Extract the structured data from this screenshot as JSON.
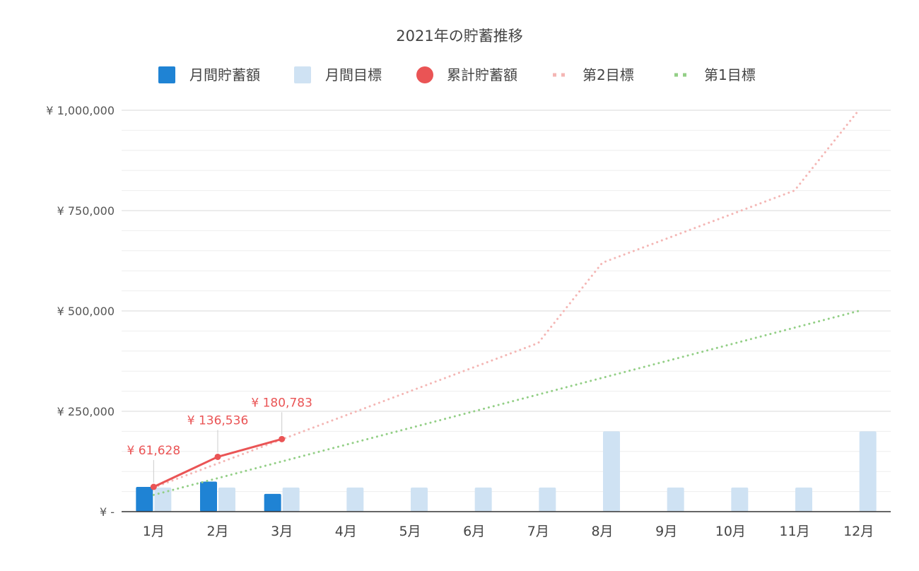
{
  "chart_data": {
    "type": "bar",
    "title": "2021年の貯蓄推移",
    "categories": [
      "1月",
      "2月",
      "3月",
      "4月",
      "5月",
      "6月",
      "7月",
      "8月",
      "9月",
      "10月",
      "11月",
      "12月"
    ],
    "ylim": [
      0,
      1000000
    ],
    "y_ticks": [
      {
        "value": 0,
        "label": "¥ -"
      },
      {
        "value": 250000,
        "label": "¥ 250,000"
      },
      {
        "value": 500000,
        "label": "¥ 500,000"
      },
      {
        "value": 750000,
        "label": "¥ 750,000"
      },
      {
        "value": 1000000,
        "label": "¥ 1,000,000"
      }
    ],
    "grid": true,
    "legend_position": "top",
    "series": [
      {
        "name": "月間貯蓄額",
        "kind": "bar",
        "color": "#1f83d4",
        "values": [
          61628,
          74908,
          44247,
          null,
          null,
          null,
          null,
          null,
          null,
          null,
          null,
          null
        ]
      },
      {
        "name": "月間目標",
        "kind": "bar",
        "color": "#cfe2f3",
        "values": [
          60000,
          60000,
          60000,
          60000,
          60000,
          60000,
          60000,
          200000,
          60000,
          60000,
          60000,
          200000
        ]
      },
      {
        "name": "累計貯蓄額",
        "kind": "line",
        "style": "solid",
        "color": "#ea5455",
        "values": [
          61628,
          136536,
          180783,
          null,
          null,
          null,
          null,
          null,
          null,
          null,
          null,
          null
        ],
        "data_labels": [
          "¥ 61,628",
          "¥ 136,536",
          "¥ 180,783"
        ]
      },
      {
        "name": "第2目標",
        "kind": "line",
        "style": "dotted",
        "color": "#f4b6b4",
        "values": [
          60000,
          120000,
          180000,
          240000,
          300000,
          360000,
          420000,
          620000,
          680000,
          740000,
          800000,
          1000000
        ]
      },
      {
        "name": "第1目標",
        "kind": "line",
        "style": "dotted",
        "color": "#93cf86",
        "values": [
          41667,
          83333,
          125000,
          166667,
          208333,
          250000,
          291667,
          333333,
          375000,
          416667,
          458333,
          500000
        ]
      }
    ]
  }
}
